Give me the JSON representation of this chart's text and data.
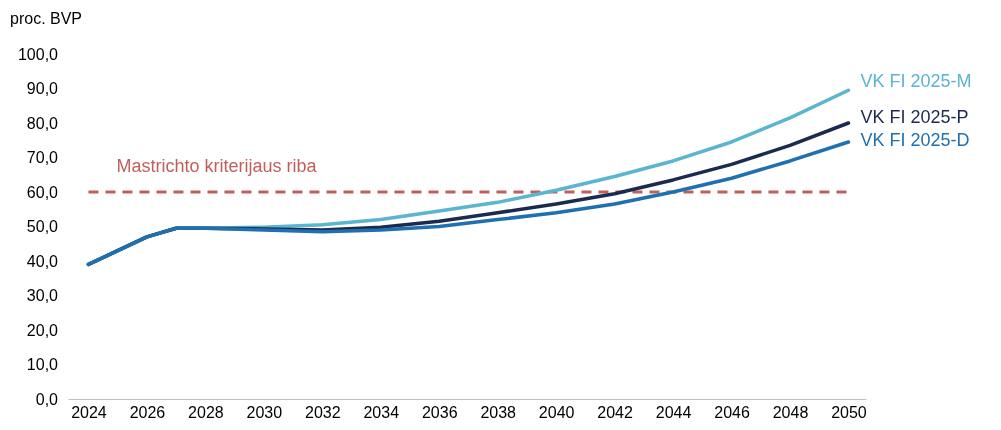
{
  "chart_data": {
    "type": "line",
    "ylabel": "proc. BVP",
    "x": [
      2024,
      2025,
      2026,
      2027,
      2028,
      2030,
      2032,
      2034,
      2036,
      2038,
      2040,
      2042,
      2044,
      2046,
      2048,
      2050
    ],
    "series": [
      {
        "name": "VK FI 2025-M",
        "color": "#5bb4d0",
        "values": [
          39,
          43,
          47,
          49.5,
          49.5,
          49.8,
          50.5,
          52,
          54.5,
          57,
          60.5,
          64.5,
          69,
          74.5,
          81.5,
          89.5
        ]
      },
      {
        "name": "VK FI 2025-P",
        "color": "#1b2a4f",
        "values": [
          39,
          43,
          47,
          49.5,
          49.5,
          49.3,
          49,
          49.8,
          51.5,
          54,
          56.5,
          59.5,
          63.5,
          68,
          73.5,
          80
        ]
      },
      {
        "name": "VK FI 2025-D",
        "color": "#1f70b0",
        "values": [
          39,
          43,
          47,
          49.5,
          49.5,
          49,
          48.5,
          49,
          50,
          52,
          54,
          56.5,
          60,
          64,
          69,
          74.5
        ]
      }
    ],
    "xlim": [
      2023.3,
      2050.6
    ],
    "xticks": [
      2024,
      2026,
      2028,
      2030,
      2032,
      2034,
      2036,
      2038,
      2040,
      2042,
      2044,
      2046,
      2048,
      2050
    ],
    "ylim": [
      0,
      100
    ],
    "yticks": [
      {
        "value": 0,
        "label": "0,0"
      },
      {
        "value": 10,
        "label": "10,0"
      },
      {
        "value": 20,
        "label": "20,0"
      },
      {
        "value": 30,
        "label": "30,0"
      },
      {
        "value": 40,
        "label": "40,0"
      },
      {
        "value": 50,
        "label": "50,0"
      },
      {
        "value": 60,
        "label": "60,0"
      },
      {
        "value": 70,
        "label": "70,0"
      },
      {
        "value": 80,
        "label": "80,0"
      },
      {
        "value": 90,
        "label": "90,0"
      },
      {
        "value": 100,
        "label": "100,0"
      }
    ],
    "ref_lines": [
      {
        "axis": "y",
        "value": 60,
        "label": "Mastrichto kriterijaus riba",
        "color": "#c0605c",
        "line_style": "dashed"
      }
    ],
    "grid": false,
    "marker": "none",
    "line_style": "solid"
  }
}
